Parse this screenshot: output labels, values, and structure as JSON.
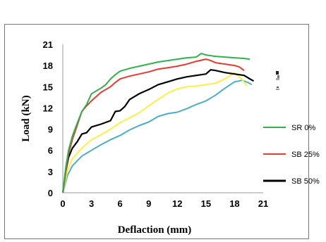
{
  "chart_data": {
    "type": "line",
    "title": "",
    "xlabel": "Deflaction (mm)",
    "ylabel": "Load (kN)",
    "xlim": [
      0,
      21
    ],
    "ylim": [
      0,
      21
    ],
    "xticks": [
      0,
      3,
      6,
      9,
      12,
      15,
      18,
      21
    ],
    "yticks": [
      0,
      3,
      6,
      9,
      12,
      15,
      18,
      21
    ],
    "grid": false,
    "legend_position": "right",
    "series": [
      {
        "name": "SR 0%",
        "color": "#2db34a",
        "x": [
          0,
          0.3,
          0.6,
          1,
          1.5,
          2,
          2.5,
          3,
          3.5,
          4,
          4.5,
          5,
          5.5,
          6,
          6.5,
          7,
          8,
          9,
          10,
          11,
          12,
          13,
          14,
          14.5,
          15,
          16,
          17,
          18,
          19,
          19.6
        ],
        "y": [
          0,
          3.5,
          6,
          8,
          9.8,
          11.5,
          12.5,
          14,
          14.4,
          14.8,
          15.3,
          16.1,
          16.7,
          17.2,
          17.4,
          17.6,
          17.9,
          18.2,
          18.5,
          18.7,
          18.9,
          19.1,
          19.2,
          19.7,
          19.5,
          19.3,
          19.2,
          19.1,
          19.0,
          18.9
        ]
      },
      {
        "name": "SB 25%",
        "color": "#e8392f",
        "x": [
          0,
          0.3,
          0.6,
          1,
          1.5,
          2,
          2.5,
          3,
          4,
          5,
          5.5,
          6,
          7,
          8,
          9,
          10,
          11,
          12,
          13,
          14,
          15,
          15.5,
          16,
          17,
          18,
          18.5,
          19
        ],
        "y": [
          0,
          3,
          5.5,
          7.5,
          9.5,
          11.5,
          12.3,
          13,
          14.2,
          15,
          15.6,
          16.1,
          16.5,
          16.8,
          17.1,
          17.5,
          17.7,
          17.9,
          18.2,
          18.6,
          18.9,
          18.7,
          18.4,
          18.2,
          18.0,
          17.8,
          17.3
        ]
      },
      {
        "name": "SB 50%",
        "color": "#000000",
        "x": [
          0,
          0.3,
          0.6,
          1,
          1.5,
          2,
          2.5,
          3,
          4,
          5,
          5.5,
          6,
          6.5,
          7,
          8,
          9,
          10,
          11,
          12,
          13,
          14,
          15,
          15.5,
          16,
          17,
          18,
          19,
          19.6,
          20
        ],
        "y": [
          0,
          3,
          5,
          6.3,
          7.2,
          8.3,
          8.5,
          9.3,
          9.7,
          10.2,
          11.5,
          11.6,
          12.2,
          13.2,
          14,
          14.6,
          15.3,
          15.7,
          16.1,
          16.4,
          16.6,
          16.8,
          17.4,
          17.3,
          17.0,
          16.8,
          16.6,
          16.1,
          15.8
        ]
      },
      {
        "name": "",
        "color": "#ffee44",
        "x": [
          0,
          0.5,
          1,
          2,
          3,
          4,
          5,
          6,
          7,
          8,
          9,
          10,
          11,
          12,
          13,
          14,
          15,
          16,
          17,
          18,
          18.8,
          19.3
        ],
        "y": [
          0,
          3.2,
          4.8,
          6.3,
          7.5,
          8.2,
          9.0,
          9.9,
          10.6,
          11.3,
          12.3,
          13.2,
          14.1,
          14.7,
          15.0,
          15.1,
          15.3,
          15.5,
          16.1,
          17.0,
          16.0,
          15.1
        ]
      },
      {
        "name": "",
        "color": "#4aaec6",
        "x": [
          0,
          0.5,
          1,
          2,
          3,
          4,
          5,
          6,
          7,
          8,
          9,
          10,
          11,
          12,
          13,
          14,
          15,
          16,
          17,
          18,
          18.8,
          19.4,
          19.8
        ],
        "y": [
          0,
          2.5,
          3.8,
          5.2,
          6.0,
          6.8,
          7.5,
          8.1,
          8.9,
          9.5,
          10.0,
          10.8,
          11.2,
          11.4,
          11.9,
          12.5,
          13.0,
          13.8,
          14.8,
          15.7,
          15.9,
          15.6,
          15.3
        ]
      }
    ]
  }
}
